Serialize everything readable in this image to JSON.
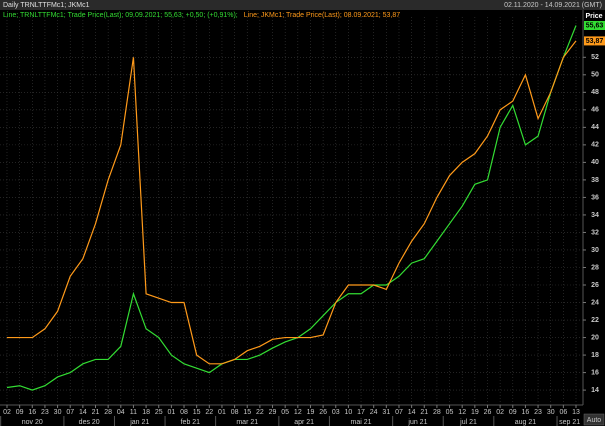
{
  "chart_data": {
    "type": "line",
    "title": "Daily TRNLTTFMc1; JKMc1",
    "date_range": "02.11.2020 - 14.09.2021 (GMT)",
    "y_axis_label": "Price",
    "auto_button": "Auto",
    "categories": [
      "02",
      "09",
      "16",
      "23",
      "30",
      "07",
      "14",
      "21",
      "28",
      "04",
      "11",
      "18",
      "25",
      "01",
      "08",
      "15",
      "22",
      "01",
      "08",
      "15",
      "22",
      "29",
      "05",
      "12",
      "19",
      "26",
      "03",
      "10",
      "17",
      "24",
      "31",
      "07",
      "14",
      "21",
      "28",
      "05",
      "12",
      "19",
      "26",
      "02",
      "09",
      "16",
      "23",
      "30",
      "06",
      "13"
    ],
    "month_labels": [
      "nov 20",
      "des 20",
      "jan 21",
      "feb 21",
      "mar 21",
      "apr 21",
      "mai 21",
      "jun 21",
      "jul 21",
      "aug 21",
      "sep 21"
    ],
    "series": [
      {
        "name": "Line; TRNLTTFMc1; Trade Price(Last); 09.09.2021; 55,63; +0,50; (+0,91%);",
        "color": "#33dd33",
        "last_label": "55,63",
        "values": [
          14.3,
          14.5,
          14,
          14.5,
          15.5,
          16,
          17,
          17.5,
          17.5,
          19,
          25,
          21,
          20,
          18,
          17,
          16.5,
          16,
          17,
          17.5,
          17.5,
          18,
          18.8,
          19.5,
          20,
          21,
          22.5,
          24,
          25,
          25,
          26,
          26,
          27,
          28.5,
          29,
          31,
          33,
          35,
          37.5,
          38,
          44,
          46.5,
          42,
          43,
          48,
          52,
          55.63
        ]
      },
      {
        "name": "Line; JKMc1; Trade Price(Last); 08.09.2021; 53,87",
        "color": "#ff9a1a",
        "last_label": "53,87",
        "values": [
          20,
          20,
          20,
          21,
          23,
          27,
          29,
          33,
          38,
          42,
          52,
          25,
          24.5,
          24,
          24,
          18,
          17,
          17,
          17.5,
          18.5,
          19,
          19.8,
          20,
          20,
          20,
          20.3,
          24,
          26,
          26,
          26,
          25.5,
          28.5,
          31,
          33,
          36,
          38.5,
          40,
          41,
          43,
          46,
          47,
          50,
          45,
          48,
          52,
          53.87
        ]
      }
    ],
    "ylim": [
      12.3,
      56.6
    ],
    "yticks": [
      14,
      16,
      18,
      20,
      22,
      24,
      26,
      28,
      30,
      32,
      34,
      36,
      38,
      40,
      42,
      44,
      46,
      48,
      50,
      52
    ],
    "grid": true
  }
}
